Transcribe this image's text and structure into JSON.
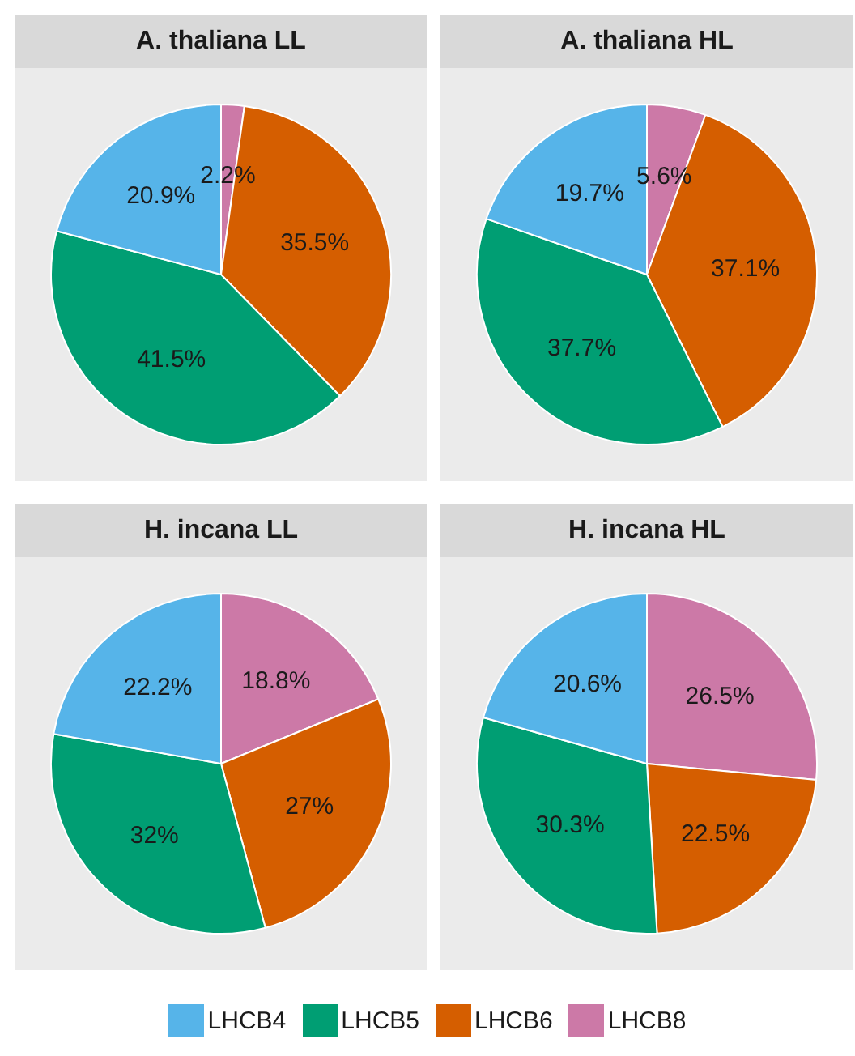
{
  "chart_data": [
    {
      "type": "pie",
      "title": "A. thaliana LL",
      "categories": [
        "LHCB4",
        "LHCB5",
        "LHCB6",
        "LHCB8"
      ],
      "values": [
        20.9,
        41.5,
        35.5,
        2.2
      ],
      "value_labels": [
        "20.9%",
        "41.5%",
        "35.5%",
        "2.2%"
      ],
      "colors": [
        "#56b4e9",
        "#009e73",
        "#d55e00",
        "#cc79a7"
      ],
      "legend": "bottom"
    },
    {
      "type": "pie",
      "title": "A. thaliana HL",
      "values": [
        19.7,
        37.7,
        37.1,
        5.6
      ],
      "value_labels": [
        "19.7%",
        "37.7%",
        "37.1%",
        "5.6%"
      ],
      "colors": [
        "#56b4e9",
        "#009e73",
        "#d55e00",
        "#cc79a7"
      ]
    },
    {
      "type": "pie",
      "title": "H. incana LL",
      "values": [
        22.2,
        32,
        27,
        18.8
      ],
      "value_labels": [
        "22.2%",
        "32%",
        "27%",
        "18.8%"
      ],
      "colors": [
        "#56b4e9",
        "#009e73",
        "#d55e00",
        "#cc79a7"
      ]
    },
    {
      "type": "pie",
      "title": "H. incana HL",
      "values": [
        20.6,
        30.3,
        22.5,
        26.5
      ],
      "value_labels": [
        "20.6%",
        "30.3%",
        "22.5%",
        "26.5%"
      ],
      "colors": [
        "#56b4e9",
        "#009e73",
        "#d55e00",
        "#cc79a7"
      ]
    }
  ]
}
